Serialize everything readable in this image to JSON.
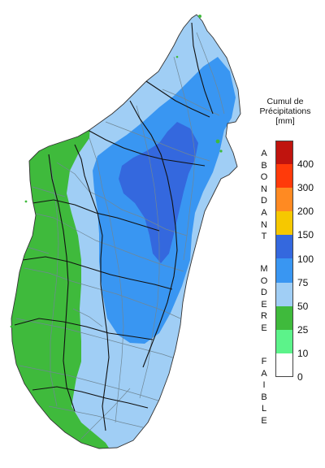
{
  "legend": {
    "title_line1": "Cumul de",
    "title_line2": "Précipitations",
    "unit": "[mm]",
    "classes": [
      {
        "color": "#c0140e"
      },
      {
        "color": "#ff3a0a"
      },
      {
        "color": "#ff8a22"
      },
      {
        "color": "#f6c800"
      },
      {
        "color": "#3468de"
      },
      {
        "color": "#3996f2"
      },
      {
        "color": "#a0cef5"
      },
      {
        "color": "#3fba3c"
      },
      {
        "color": "#5cf38a"
      },
      {
        "color": "#ffffff"
      }
    ],
    "ticks": [
      "400",
      "300",
      "200",
      "150",
      "100",
      "75",
      "50",
      "25",
      "10",
      "0"
    ],
    "categories": [
      {
        "label": "ABONDANT"
      },
      {
        "label": "MODERE"
      },
      {
        "label": "FAIBLE"
      }
    ]
  },
  "map": {
    "colors": {
      "faible": "#3fba3c",
      "modere_light": "#a0cef5",
      "modere_mid": "#3996f2",
      "modere_dark": "#3468de",
      "district_borders": "#6f8796",
      "region_borders": "#111111"
    }
  }
}
